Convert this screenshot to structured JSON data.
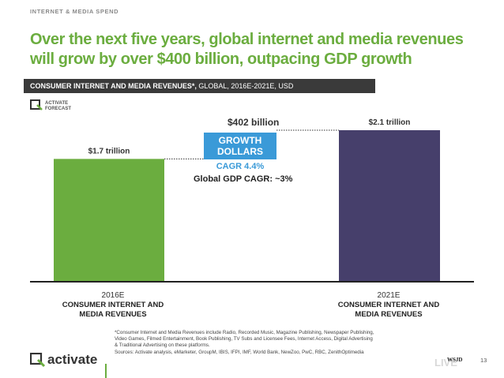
{
  "header": {
    "section_label": "INTERNET & MEDIA SPEND",
    "headline": "Over the next five years, global internet and media revenues will grow by over $400 billion, outpacing GDP growth"
  },
  "subhead": {
    "strong": "CONSUMER INTERNET AND MEDIA REVENUES*,",
    "rest": " GLOBAL, 2016E-2021E, USD"
  },
  "brand": {
    "small_text_line1": "ACTIVATE",
    "small_text_line2": "FORECAST",
    "footer_name": "activate",
    "wsj_text": "WSJD",
    "wsj_live_text": "LIVE"
  },
  "chart_data": {
    "type": "bar",
    "categories": [
      "2016E",
      "2021E"
    ],
    "category_sublabels": [
      "CONSUMER INTERNET AND MEDIA REVENUES",
      "CONSUMER INTERNET AND MEDIA REVENUES"
    ],
    "values": [
      1.7,
      2.1
    ],
    "value_labels": [
      "$1.7 trillion",
      "$2.1 trillion"
    ],
    "colors": [
      "#6bad3f",
      "#463f6b"
    ],
    "unit": "USD trillions",
    "ylim": [
      0,
      2.3
    ],
    "annotations": {
      "difference": "$402 billion",
      "growth_label": "GROWTH DOLLARS",
      "cagr": "CAGR 4.4%",
      "gdp_cagr": "Global GDP CAGR: ~3%"
    }
  },
  "footnote": {
    "line1": "*Consumer Internet and Media Revenues include Radio, Recorded Music, Magazine Publishing, Newspaper Publishing,",
    "line2": "Video Games, Filmed Entertainment, Book Publishing, TV Subs and Licensee Fees, Internet Access, Digital Advertising",
    "line3": "& Traditional Advertising on these platforms.",
    "line4": "Sources: Activate analysis, eMarketer, GroupM, IBIS, IFPI, IMF, World Bank, NewZoo, PwC, RBC, ZenithOptimedia"
  },
  "page": {
    "number": "13"
  }
}
